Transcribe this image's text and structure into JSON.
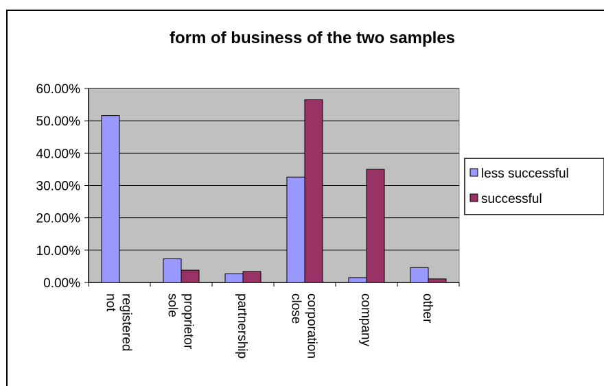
{
  "chart_data": {
    "type": "bar",
    "title": "form of business of the two samples",
    "xlabel": "",
    "ylabel": "",
    "categories": [
      [
        "not",
        "registered"
      ],
      [
        "sole",
        "proprietor"
      ],
      [
        "partnership"
      ],
      [
        "close",
        "corporation"
      ],
      [
        "company"
      ],
      [
        "other"
      ]
    ],
    "series": [
      {
        "name": "less successful",
        "color": "#9999ff",
        "values": [
          0.516,
          0.073,
          0.027,
          0.326,
          0.015,
          0.046
        ]
      },
      {
        "name": "successful",
        "color": "#993366",
        "values": [
          0,
          0.038,
          0.034,
          0.565,
          0.35,
          0.011
        ]
      }
    ],
    "ylim": [
      0,
      0.6
    ],
    "yticks": [
      0,
      0.1,
      0.2,
      0.3,
      0.4,
      0.5,
      0.6
    ],
    "ytick_labels": [
      "0.00%",
      "10.00%",
      "20.00%",
      "30.00%",
      "40.00%",
      "50.00%",
      "60.00%"
    ],
    "plot_background": "#c0c0c0",
    "gridlines": true,
    "legend_position": "right"
  }
}
